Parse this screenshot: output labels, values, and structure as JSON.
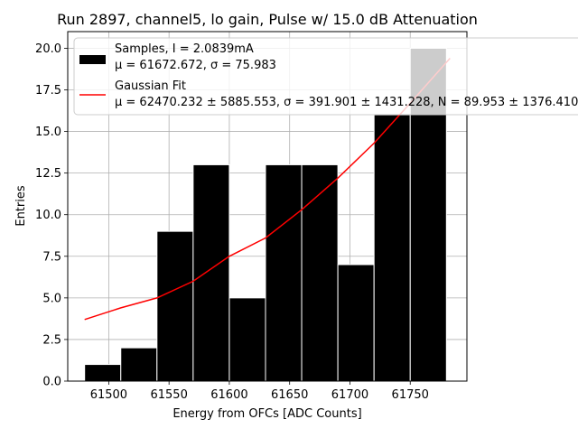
{
  "chart_data": {
    "type": "bar",
    "title": "Run 2897, channel5, lo gain, Pulse w/ 15.0 dB Attenuation",
    "xlabel": "Energy from OFCs [ADC Counts]",
    "ylabel": "Entries",
    "xlim": [
      61466,
      61797
    ],
    "ylim": [
      0,
      21
    ],
    "xticks": [
      61500,
      61550,
      61600,
      61650,
      61700,
      61750
    ],
    "xtick_labels": [
      "61500",
      "61550",
      "61600",
      "61650",
      "61700",
      "61750"
    ],
    "yticks": [
      0,
      2.5,
      5,
      7.5,
      10,
      12.5,
      15,
      17.5,
      20
    ],
    "ytick_labels": [
      "0.0",
      "2.5",
      "5.0",
      "7.5",
      "10.0",
      "12.5",
      "15.0",
      "17.5",
      "20.0"
    ],
    "grid": true,
    "legend_position": "top-right",
    "bins": {
      "edges": [
        61480,
        61510,
        61540,
        61570,
        61600,
        61630,
        61660,
        61690,
        61720,
        61750,
        61780
      ],
      "values": [
        1,
        2,
        9,
        13,
        5,
        13,
        13,
        7,
        16,
        20
      ]
    },
    "series": [
      {
        "name": "Samples, I = 2.0839mA",
        "legend_line2": "μ = 61672.672, σ = 75.983",
        "type": "histogram",
        "color": "#000000",
        "edge_color": "#ffffff"
      },
      {
        "name": "Gaussian Fit",
        "legend_line2": "μ = 62470.232 ± 5885.553, σ = 391.901 ± 1431.228, N = 89.953 ± 1376.410",
        "type": "line",
        "color": "#ff0000",
        "x": [
          61480,
          61510,
          61540,
          61570,
          61600,
          61630,
          61660,
          61690,
          61720,
          61750,
          61783
        ],
        "y": [
          3.7,
          4.4,
          5.0,
          6.0,
          7.5,
          8.6,
          10.3,
          12.2,
          14.3,
          16.7,
          19.4
        ]
      }
    ]
  }
}
